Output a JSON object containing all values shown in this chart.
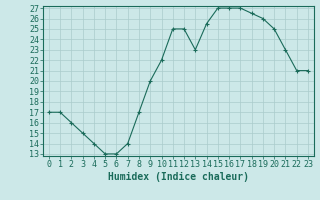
{
  "x": [
    0,
    1,
    2,
    3,
    4,
    5,
    6,
    7,
    8,
    9,
    10,
    11,
    12,
    13,
    14,
    15,
    16,
    17,
    18,
    19,
    20,
    21,
    22,
    23
  ],
  "y": [
    17,
    17,
    16,
    15,
    14,
    13,
    13,
    14,
    17,
    20,
    22,
    25,
    25,
    23,
    25.5,
    27,
    27,
    27,
    26.5,
    26,
    25,
    23,
    21,
    21
  ],
  "xlabel": "Humidex (Indice chaleur)",
  "ylim": [
    13,
    27
  ],
  "xlim": [
    -0.5,
    23.5
  ],
  "yticks": [
    13,
    14,
    15,
    16,
    17,
    18,
    19,
    20,
    21,
    22,
    23,
    24,
    25,
    26,
    27
  ],
  "xticks": [
    0,
    1,
    2,
    3,
    4,
    5,
    6,
    7,
    8,
    9,
    10,
    11,
    12,
    13,
    14,
    15,
    16,
    17,
    18,
    19,
    20,
    21,
    22,
    23
  ],
  "line_color": "#1a6b5a",
  "marker_color": "#1a6b5a",
  "bg_color": "#cce8e8",
  "grid_color": "#aacccc",
  "axis_color": "#1a6b5a",
  "label_color": "#1a6b5a",
  "tick_label_color": "#1a6b5a",
  "xlabel_fontsize": 7.0,
  "tick_fontsize": 6.0
}
